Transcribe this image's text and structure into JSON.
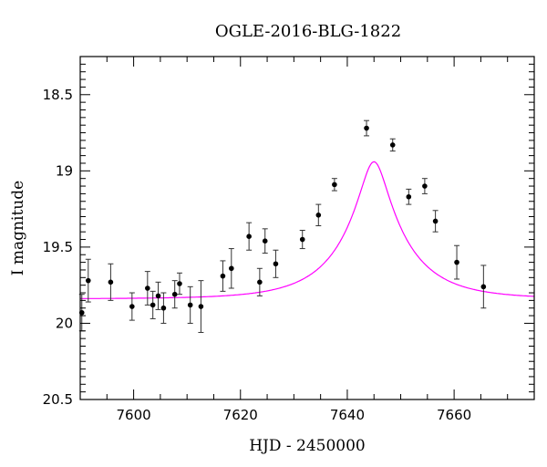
{
  "chart_data": {
    "type": "scatter",
    "title": "OGLE-2016-BLG-1822",
    "xlabel": "HJD - 2450000",
    "ylabel": "I magnitude",
    "xlim": [
      7590,
      7675
    ],
    "ylim": [
      20.5,
      18.25
    ],
    "y_inverted": true,
    "x_ticks": [
      7600,
      7620,
      7640,
      7660
    ],
    "x_tick_labels": [
      "7600",
      "7620",
      "7640",
      "7660"
    ],
    "y_ticks": [
      18.5,
      19,
      19.5,
      20,
      20.5
    ],
    "y_tick_labels": [
      "18.5",
      "19",
      "19.5",
      "20",
      "20.5"
    ],
    "grid": false,
    "series": [
      {
        "color": "#000000",
        "points": [
          {
            "x": 7590.3,
            "y": 19.93,
            "err": 0.12
          },
          {
            "x": 7591.5,
            "y": 19.72,
            "err": 0.14
          },
          {
            "x": 7595.7,
            "y": 19.73,
            "err": 0.12
          },
          {
            "x": 7599.7,
            "y": 19.89,
            "err": 0.09
          },
          {
            "x": 7602.6,
            "y": 19.77,
            "err": 0.11
          },
          {
            "x": 7603.6,
            "y": 19.88,
            "err": 0.09
          },
          {
            "x": 7604.6,
            "y": 19.82,
            "err": 0.09
          },
          {
            "x": 7605.6,
            "y": 19.9,
            "err": 0.1
          },
          {
            "x": 7607.7,
            "y": 19.81,
            "err": 0.09
          },
          {
            "x": 7608.6,
            "y": 19.74,
            "err": 0.07
          },
          {
            "x": 7610.6,
            "y": 19.88,
            "err": 0.12
          },
          {
            "x": 7612.6,
            "y": 19.89,
            "err": 0.17
          },
          {
            "x": 7616.7,
            "y": 19.69,
            "err": 0.1
          },
          {
            "x": 7618.3,
            "y": 19.64,
            "err": 0.13
          },
          {
            "x": 7621.6,
            "y": 19.43,
            "err": 0.09
          },
          {
            "x": 7623.6,
            "y": 19.73,
            "err": 0.09
          },
          {
            "x": 7624.6,
            "y": 19.46,
            "err": 0.08
          },
          {
            "x": 7626.6,
            "y": 19.61,
            "err": 0.09
          },
          {
            "x": 7631.6,
            "y": 19.45,
            "err": 0.06
          },
          {
            "x": 7634.6,
            "y": 19.29,
            "err": 0.07
          },
          {
            "x": 7637.6,
            "y": 19.09,
            "err": 0.04
          },
          {
            "x": 7643.6,
            "y": 18.72,
            "err": 0.05
          },
          {
            "x": 7648.5,
            "y": 18.83,
            "err": 0.04
          },
          {
            "x": 7651.5,
            "y": 19.17,
            "err": 0.05
          },
          {
            "x": 7654.5,
            "y": 19.1,
            "err": 0.05
          },
          {
            "x": 7656.5,
            "y": 19.33,
            "err": 0.07
          },
          {
            "x": 7660.5,
            "y": 19.6,
            "err": 0.11
          },
          {
            "x": 7665.5,
            "y": 19.76,
            "err": 0.14
          }
        ]
      }
    ],
    "model_curve": {
      "color": "#ff00ff",
      "baseline": 19.84,
      "t0": 7645.0,
      "u0": 0.2,
      "tE": 12.0
    }
  }
}
